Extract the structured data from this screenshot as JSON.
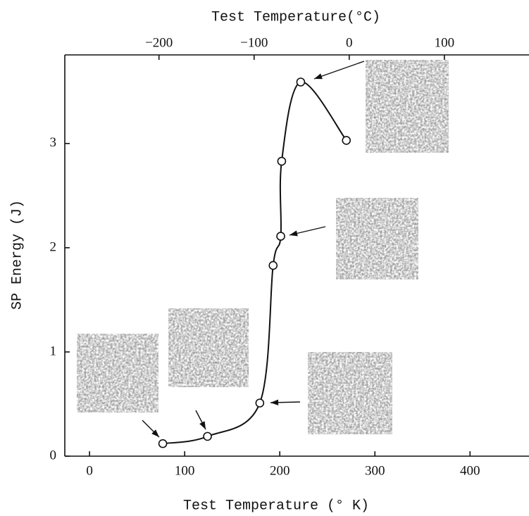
{
  "chart_data": {
    "type": "line",
    "x2label": "Test Temperature(°C)",
    "xlabel": "Test Temperature (° K)",
    "ylabel": "SP Energy (J)",
    "x": [
      77,
      124,
      179,
      193,
      201,
      202,
      222,
      270
    ],
    "values": [
      0.12,
      0.19,
      0.51,
      1.83,
      2.11,
      2.83,
      3.59,
      3.03
    ],
    "color": "#111111",
    "marker": "open-circle",
    "xlim": [
      -26,
      462
    ],
    "xticks": [
      0,
      100,
      200,
      300,
      400
    ],
    "x2lim": [
      -299,
      189
    ],
    "x2ticks": [
      {
        "value": -200,
        "label": "−200"
      },
      {
        "value": -100,
        "label": "−100"
      },
      0,
      100
    ],
    "ylim": [
      0,
      3.85
    ],
    "yticks": [
      0,
      1,
      2,
      3
    ]
  }
}
